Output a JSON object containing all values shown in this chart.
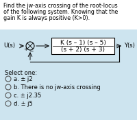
{
  "title_line1": "Find the jw-axis crossing of the root-locus",
  "title_line2": "of the following system. Knowing that the",
  "title_line3": "gain K is always positive (K>0).",
  "block_numerator": "K (s – 1) (s – 5)",
  "block_denominator": "(s + 2) (s + 3)",
  "u_label": "U(s)",
  "y_label": "Y(s)",
  "select_text": "Select one:",
  "options": [
    "a. ± j2",
    "b. There is no jw-axis crossing",
    "c. ± j2.35",
    "d. ± j5"
  ],
  "bg_color": "#cde4ef",
  "block_bg": "#ffffff",
  "text_color": "#000000",
  "title_fontsize": 5.8,
  "option_fontsize": 6.0,
  "block_fontsize": 6.5,
  "label_fontsize": 6.0
}
